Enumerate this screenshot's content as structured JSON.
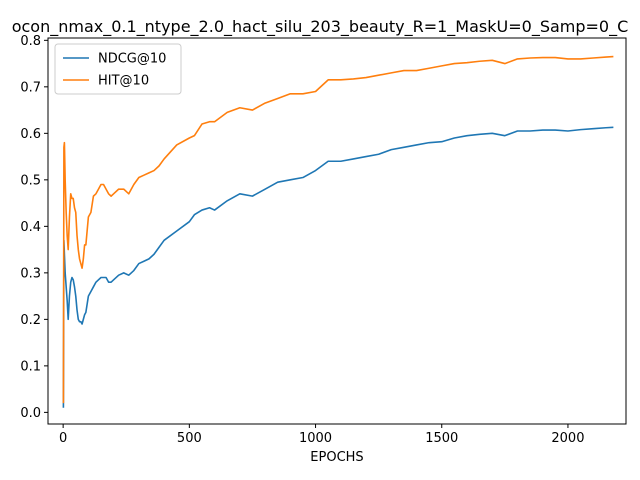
{
  "chart_data": {
    "type": "line",
    "title": "ocon_nmax_0.1_ntype_2.0_hact_silu_203_beauty_R=1_MaskU=0_Samp=0_C",
    "xlabel": "EPOCHS",
    "ylabel": "",
    "xlim": [
      -60,
      2230
    ],
    "ylim": [
      -0.025,
      0.805
    ],
    "xticks": [
      0,
      500,
      1000,
      1500,
      2000
    ],
    "yticks": [
      0.0,
      0.1,
      0.2,
      0.3,
      0.4,
      0.5,
      0.6,
      0.7,
      0.8
    ],
    "xtick_labels": [
      "0",
      "500",
      "1000",
      "1500",
      "2000"
    ],
    "ytick_labels": [
      "0.0",
      "0.1",
      "0.2",
      "0.3",
      "0.4",
      "0.5",
      "0.6",
      "0.7",
      "0.8"
    ],
    "legend_position": "top-left",
    "grid": false,
    "series": [
      {
        "name": "NDCG@10",
        "color": "#1f77b4",
        "x": [
          1,
          3,
          5,
          8,
          12,
          16,
          20,
          25,
          30,
          35,
          40,
          45,
          50,
          55,
          60,
          65,
          70,
          75,
          80,
          85,
          90,
          100,
          110,
          120,
          130,
          140,
          150,
          160,
          170,
          180,
          190,
          200,
          220,
          240,
          260,
          280,
          300,
          320,
          340,
          360,
          380,
          400,
          450,
          500,
          520,
          550,
          580,
          600,
          650,
          700,
          750,
          800,
          850,
          900,
          950,
          1000,
          1050,
          1100,
          1150,
          1200,
          1250,
          1300,
          1350,
          1400,
          1450,
          1500,
          1550,
          1600,
          1650,
          1700,
          1750,
          1800,
          1850,
          1900,
          1950,
          2000,
          2050,
          2100,
          2150,
          2180
        ],
        "y": [
          0.01,
          0.37,
          0.34,
          0.3,
          0.27,
          0.24,
          0.2,
          0.25,
          0.28,
          0.29,
          0.285,
          0.27,
          0.25,
          0.22,
          0.2,
          0.195,
          0.195,
          0.19,
          0.2,
          0.21,
          0.215,
          0.25,
          0.26,
          0.27,
          0.28,
          0.285,
          0.29,
          0.29,
          0.29,
          0.28,
          0.28,
          0.285,
          0.295,
          0.3,
          0.295,
          0.305,
          0.32,
          0.325,
          0.33,
          0.34,
          0.355,
          0.37,
          0.39,
          0.41,
          0.425,
          0.435,
          0.44,
          0.435,
          0.455,
          0.47,
          0.465,
          0.48,
          0.495,
          0.5,
          0.505,
          0.52,
          0.54,
          0.54,
          0.545,
          0.55,
          0.555,
          0.565,
          0.57,
          0.575,
          0.58,
          0.582,
          0.59,
          0.595,
          0.598,
          0.6,
          0.595,
          0.605,
          0.605,
          0.607,
          0.607,
          0.605,
          0.608,
          0.61,
          0.612,
          0.613
        ]
      },
      {
        "name": "HIT@10",
        "color": "#ff7f0e",
        "x": [
          1,
          3,
          5,
          8,
          12,
          16,
          20,
          25,
          30,
          35,
          40,
          45,
          50,
          55,
          60,
          65,
          70,
          75,
          80,
          85,
          90,
          100,
          110,
          120,
          130,
          140,
          150,
          160,
          170,
          180,
          190,
          200,
          220,
          240,
          260,
          280,
          300,
          320,
          340,
          360,
          380,
          400,
          450,
          500,
          520,
          550,
          580,
          600,
          650,
          700,
          750,
          800,
          850,
          900,
          950,
          1000,
          1050,
          1100,
          1150,
          1200,
          1250,
          1300,
          1350,
          1400,
          1450,
          1500,
          1550,
          1600,
          1650,
          1700,
          1750,
          1800,
          1850,
          1900,
          1950,
          2000,
          2050,
          2100,
          2150,
          2180
        ],
        "y": [
          0.02,
          0.57,
          0.58,
          0.5,
          0.43,
          0.38,
          0.35,
          0.42,
          0.47,
          0.46,
          0.46,
          0.44,
          0.43,
          0.38,
          0.35,
          0.33,
          0.32,
          0.31,
          0.33,
          0.36,
          0.36,
          0.42,
          0.43,
          0.465,
          0.47,
          0.48,
          0.49,
          0.49,
          0.48,
          0.47,
          0.465,
          0.47,
          0.48,
          0.48,
          0.47,
          0.49,
          0.505,
          0.51,
          0.515,
          0.52,
          0.53,
          0.545,
          0.575,
          0.59,
          0.595,
          0.62,
          0.625,
          0.625,
          0.645,
          0.655,
          0.65,
          0.665,
          0.675,
          0.685,
          0.685,
          0.69,
          0.715,
          0.715,
          0.717,
          0.72,
          0.725,
          0.73,
          0.735,
          0.735,
          0.74,
          0.745,
          0.75,
          0.752,
          0.755,
          0.757,
          0.75,
          0.76,
          0.762,
          0.763,
          0.763,
          0.76,
          0.76,
          0.762,
          0.764,
          0.765
        ]
      }
    ]
  }
}
